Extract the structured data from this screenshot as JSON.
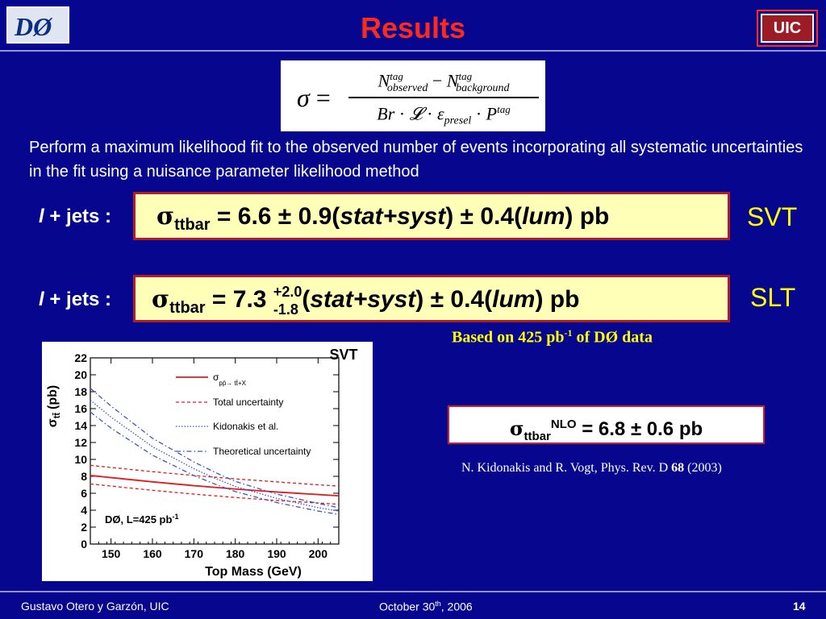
{
  "header": {
    "title": "Results",
    "logo_left_text": "DØ",
    "logo_right_text": "UIC"
  },
  "formula": {
    "sigma": "σ",
    "equals": "=",
    "N": "N",
    "tag": "tag",
    "observed": "observed",
    "background": "background",
    "minus": "−",
    "Br": "Br",
    "L": "𝓛",
    "eps": "ε",
    "presel": "presel",
    "P": "P",
    "dot": "·"
  },
  "description": "Perform a maximum likelihood fit to the observed number of events incorporating all systematic uncertainties in the fit using a nuisance parameter likelihood method",
  "results": [
    {
      "label_l": "l",
      "label_rest": " + jets :",
      "sigma": "σ",
      "sub": "ttbar",
      "eq_value": " = 6.6 ± 0.9(",
      "stat": "stat+syst",
      "mid": ") ± 0.4(",
      "lum": "lum",
      "end": ") pb",
      "method": "SVT"
    },
    {
      "label_l": "l",
      "label_rest": " + jets :",
      "sigma": "σ",
      "sub": "ttbar",
      "eq_value": " = 7.3 ",
      "sup_err": "+2.0",
      "sub_err": "-1.8",
      "open": "(",
      "stat": "stat+syst",
      "mid": ") ± 0.4(",
      "lum": "lum",
      "end": ") pb",
      "method": "SLT"
    }
  ],
  "based_on": {
    "pre": "Based on 425 pb",
    "sup": "-1",
    "post": " of DØ data"
  },
  "nlo": {
    "sigma": "σ",
    "sub": "ttbar",
    "sup": "NLO",
    "rest": " = 6.8 ± 0.6 pb"
  },
  "reference": {
    "pre": "N. Kidonakis and R. Vogt, Phys. Rev. D ",
    "vol": "68",
    "post": " (2003)"
  },
  "plot": {
    "corner_label": "SVT",
    "ylabel_sigma": "σ",
    "ylabel_sub": "tt̄",
    "ylabel_unit": "(pb)",
    "xlabel": "Top Mass (GeV)",
    "annotation": "DØ, L=425 pb",
    "annotation_sup": "-1",
    "legend": [
      {
        "text": "σ",
        "sub": "pp̄→ tt̄+X",
        "style": "solid"
      },
      {
        "text": "Total uncertainty",
        "sub": "",
        "style": "dashed"
      },
      {
        "text": "Kidonakis et al.",
        "sub": "",
        "style": "dotted"
      },
      {
        "text": "Theoretical uncertainty",
        "sub": "",
        "style": "dashdot"
      }
    ]
  },
  "chart_data": {
    "type": "line",
    "title": "SVT",
    "xlabel": "Top Mass (GeV)",
    "ylabel": "σ tt̄ (pb)",
    "xlim": [
      145,
      205
    ],
    "ylim": [
      0,
      22
    ],
    "xticks": [
      150,
      160,
      170,
      180,
      190,
      200
    ],
    "yticks": [
      0,
      2,
      4,
      6,
      8,
      10,
      12,
      14,
      16,
      18,
      20,
      22
    ],
    "x": [
      145,
      150,
      160,
      170,
      175,
      180,
      190,
      200,
      205
    ],
    "series": [
      {
        "name": "σ pp̄→ tt̄+X",
        "color": "#e41a1c",
        "style": "solid",
        "values": [
          8.1,
          7.85,
          7.35,
          6.9,
          6.7,
          6.5,
          6.15,
          5.85,
          5.7
        ]
      },
      {
        "name": "Total uncertainty",
        "color": "#e41a1c",
        "style": "dashed",
        "values": [
          9.3,
          9.05,
          8.55,
          8.1,
          7.9,
          7.7,
          7.35,
          7.0,
          6.85
        ]
      },
      {
        "name": "Total uncertainty",
        "color": "#e41a1c",
        "style": "dashed",
        "values": [
          7.1,
          6.85,
          6.35,
          5.9,
          5.7,
          5.5,
          5.15,
          4.85,
          4.7
        ]
      },
      {
        "name": "Kidonakis et al.",
        "color": "#3a56c8",
        "style": "dotted",
        "values": [
          17.0,
          15.0,
          11.5,
          8.9,
          7.8,
          6.8,
          5.4,
          4.3,
          3.9
        ]
      },
      {
        "name": "Theoretical uncertainty",
        "color": "#3a56c8",
        "style": "dashdot",
        "values": [
          18.4,
          16.3,
          12.5,
          9.7,
          8.5,
          7.4,
          5.9,
          4.8,
          4.3
        ]
      },
      {
        "name": "Theoretical uncertainty",
        "color": "#3a56c8",
        "style": "dashdot",
        "values": [
          15.6,
          13.7,
          10.5,
          8.1,
          7.1,
          6.2,
          4.9,
          3.9,
          3.5
        ]
      }
    ]
  },
  "footer": {
    "author": "Gustavo Otero y Garzón, UIC",
    "date_pre": "October 30",
    "date_sup": "th",
    "date_post": ", 2006",
    "page": "14"
  },
  "colors": {
    "background": "#06068f",
    "title": "#ff2a1a",
    "highlight": "#ffff00",
    "box_fill": "#ffffb8",
    "box_border": "#b31b2a"
  }
}
